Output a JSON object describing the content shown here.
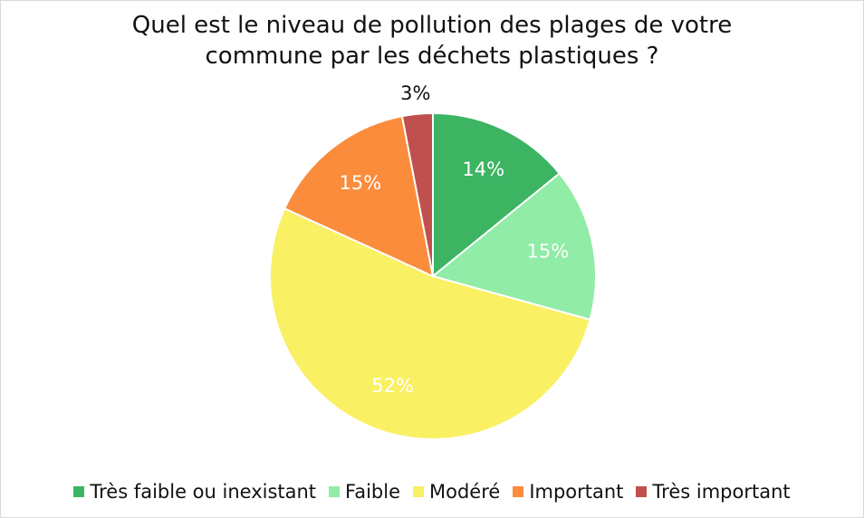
{
  "chart_data": {
    "type": "pie",
    "title": "Quel est le niveau de pollution des plages de votre commune par les déchets plastiques ?",
    "categories": [
      "Très faible ou inexistant",
      "Faible",
      "Modéré",
      "Important",
      "Très important"
    ],
    "values": [
      14,
      15,
      52,
      15,
      3
    ],
    "value_labels": [
      "14%",
      "15%",
      "52%",
      "15%",
      "3%"
    ],
    "colors": [
      "#3cb462",
      "#90eca6",
      "#f9f064",
      "#fb8c3c",
      "#c0504d"
    ],
    "legend": "bottom"
  }
}
